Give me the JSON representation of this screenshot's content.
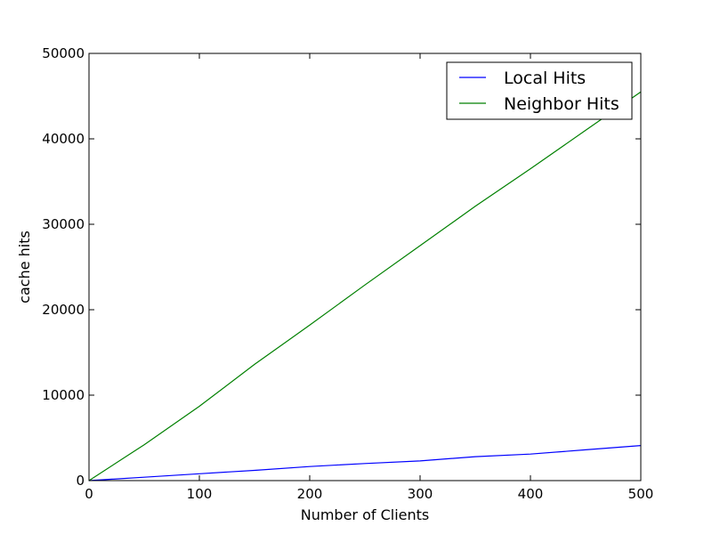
{
  "chart_data": {
    "type": "line",
    "title": "",
    "xlabel": "Number of Clients",
    "ylabel": "cache hits",
    "xlim": [
      0,
      500
    ],
    "ylim": [
      0,
      50000
    ],
    "xticks": [
      0,
      100,
      200,
      300,
      400,
      500
    ],
    "yticks": [
      0,
      10000,
      20000,
      30000,
      40000,
      50000
    ],
    "grid": false,
    "legend": "top-right",
    "series": [
      {
        "name": "Local Hits",
        "color": "#0000ff",
        "x": [
          0,
          50,
          100,
          150,
          200,
          250,
          300,
          350,
          400,
          450,
          500
        ],
        "y": [
          0,
          400,
          800,
          1200,
          1650,
          2000,
          2300,
          2800,
          3100,
          3600,
          4100
        ]
      },
      {
        "name": "Neighbor Hits",
        "color": "#008000",
        "x": [
          0,
          50,
          100,
          150,
          200,
          250,
          300,
          350,
          400,
          450,
          500
        ],
        "y": [
          0,
          4200,
          8700,
          13600,
          18200,
          22900,
          27500,
          32100,
          36500,
          41000,
          45500
        ]
      }
    ]
  }
}
